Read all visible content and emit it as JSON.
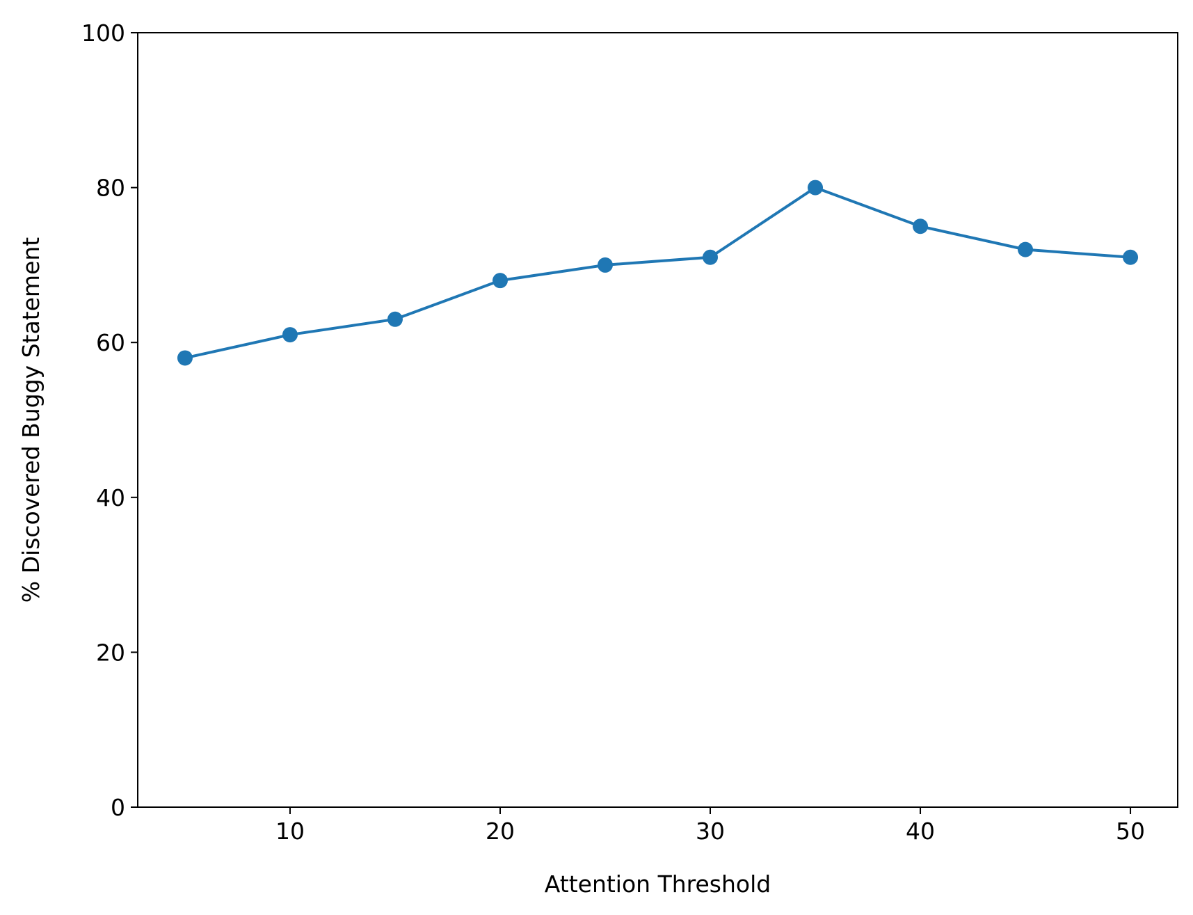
{
  "chart_data": {
    "type": "line",
    "title": "",
    "xlabel": "Attention Threshold",
    "ylabel": "% Discovered Buggy Statement",
    "xlim": [
      2.75,
      52.25
    ],
    "ylim": [
      0,
      100
    ],
    "x_ticks": [
      10,
      20,
      30,
      40,
      50
    ],
    "y_ticks": [
      0,
      20,
      40,
      60,
      80,
      100
    ],
    "grid": false,
    "legend": "none",
    "series": [
      {
        "color": "#1f77b4",
        "marker": "circle",
        "x": [
          5,
          10,
          15,
          20,
          25,
          30,
          35,
          40,
          45,
          50
        ],
        "y": [
          58,
          61,
          63,
          68,
          70,
          71,
          80,
          75,
          72,
          71
        ]
      }
    ]
  }
}
